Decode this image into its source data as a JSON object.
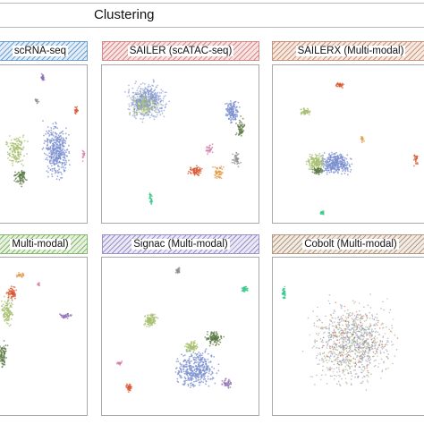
{
  "header": {
    "title": "Clustering"
  },
  "panels": [
    {
      "id": "p1",
      "label": "scRNA-seq",
      "tag_color": "#6f9fce",
      "tag_bg": "#e3edf8"
    },
    {
      "id": "p2",
      "label": "SAILER (scATAC-seq)",
      "tag_color": "#d58a8a",
      "tag_bg": "#f8e3e3"
    },
    {
      "id": "p3",
      "label": "SAILERX (Multi-modal)",
      "tag_color": "#c9957a",
      "tag_bg": "#f6e9e1"
    },
    {
      "id": "p4",
      "label": "Multi-modal)",
      "tag_color": "#86b86f",
      "tag_bg": "#e6f2df"
    },
    {
      "id": "p5",
      "label": "Signac (Multi-modal)",
      "tag_color": "#9c92c9",
      "tag_bg": "#ebe8f6"
    },
    {
      "id": "p6",
      "label": "Cobolt (Multi-modal)",
      "tag_color": "#b49a82",
      "tag_bg": "#f1ebe4"
    }
  ],
  "palette": {
    "blue": "#7b8fd0",
    "green": "#a7bf6f",
    "darkgreen": "#5c7a46",
    "red": "#d9562f",
    "orange": "#e39b4b",
    "pink": "#d47fa8",
    "purple": "#8d6fb3",
    "teal": "#3cc98e",
    "gray": "#8e8e8e"
  }
}
